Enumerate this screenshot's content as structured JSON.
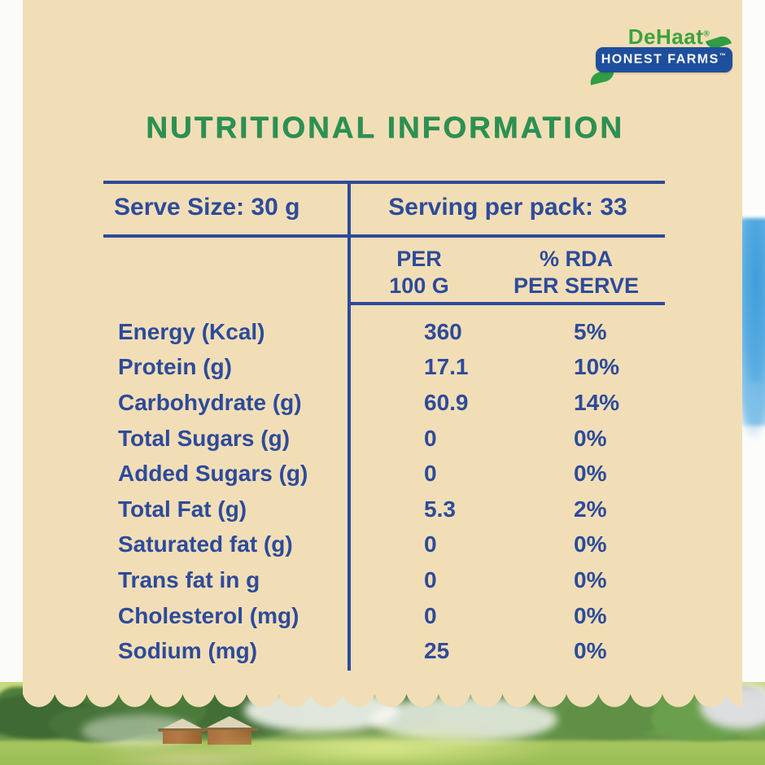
{
  "brand": {
    "name": "DeHaat",
    "registered_mark": "®",
    "banner_text": "HONEST FARMS",
    "trademark": "™"
  },
  "title": "NUTRITIONAL INFORMATION",
  "serving": {
    "serve_size": "Serve Size: 30 g",
    "per_pack": "Serving per pack: 33"
  },
  "columns": {
    "per100_line1": "PER",
    "per100_line2": "100 G",
    "rda_line1": "% RDA",
    "rda_line2": "PER SERVE"
  },
  "rows": [
    {
      "label": "Energy (Kcal)",
      "per100": "360",
      "rda": "5%"
    },
    {
      "label": "Protein (g)",
      "per100": "17.1",
      "rda": "10%"
    },
    {
      "label": "Carbohydrate (g)",
      "per100": "60.9",
      "rda": "14%"
    },
    {
      "label": "Total Sugars (g)",
      "per100": "0",
      "rda": "0%"
    },
    {
      "label": "Added Sugars (g)",
      "per100": "0",
      "rda": "0%"
    },
    {
      "label": "Total Fat (g)",
      "per100": "5.3",
      "rda": "2%"
    },
    {
      "label": "Saturated fat (g)",
      "per100": "0",
      "rda": "0%"
    },
    {
      "label": "Trans fat in g",
      "per100": "0",
      "rda": "0%"
    },
    {
      "label": "Cholesterol (mg)",
      "per100": "0",
      "rda": "0%"
    },
    {
      "label": "Sodium (mg)",
      "per100": "25",
      "rda": "0%"
    }
  ],
  "colors": {
    "panel_beige": "#f2deb6",
    "table_blue": "#2d4b9b",
    "title_green": "#2b9152",
    "brand_green": "#3da23d",
    "banner_blue": "#1e4f9e",
    "leaf_green": "#2f9e45"
  }
}
